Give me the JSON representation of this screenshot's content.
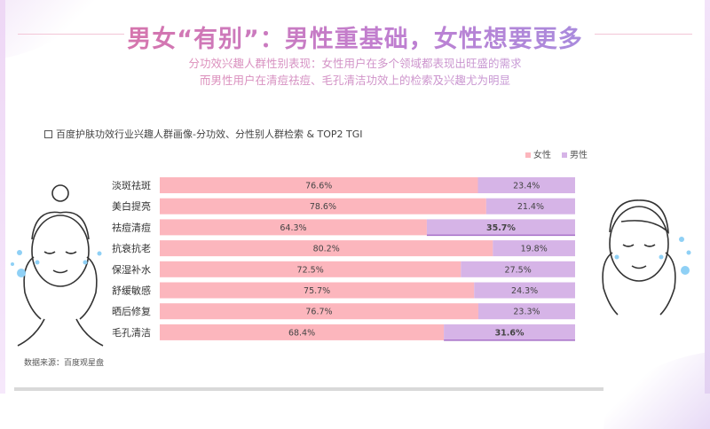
{
  "title": "男女“有别”：男性重基础，女性想要更多",
  "subtitle_lines": [
    "分功效兴趣人群性别表现：女性用户在多个领域都表现出旺盛的需求",
    "而男性用户在清痘祛痘、毛孔清洁功效上的检索及兴趣尤为明显"
  ],
  "source": "数据来源：百度观星盘",
  "colors": {
    "female": "#fcb6bd",
    "male": "#d6b4e7"
  },
  "chart_data": {
    "type": "bar",
    "orientation": "horizontal",
    "stacked": true,
    "normalized": true,
    "title": "百度护肤功效行业兴趣人群画像-分功效、分性别人群检索 & TOP2 TGI",
    "legend_position": "top-right",
    "categories": [
      "淡斑祛斑",
      "美白提亮",
      "祛痘清痘",
      "抗衰抗老",
      "保湿补水",
      "舒缓敏感",
      "晒后修复",
      "毛孔清洁"
    ],
    "series": [
      {
        "name": "女性",
        "values": [
          76.6,
          78.6,
          64.3,
          80.2,
          72.5,
          75.7,
          76.7,
          68.4
        ],
        "labels": [
          "76.6%",
          "78.6%",
          "64.3%",
          "80.2%",
          "72.5%",
          "75.7%",
          "76.7%",
          "68.4%"
        ]
      },
      {
        "name": "男性",
        "values": [
          23.4,
          21.4,
          35.7,
          19.8,
          27.5,
          24.3,
          23.3,
          31.6
        ],
        "labels": [
          "23.4%",
          "21.4%",
          "35.7%",
          "19.8%",
          "27.5%",
          "24.3%",
          "23.3%",
          "31.6%"
        ],
        "highlighted": [
          "祛痘清痘",
          "毛孔清洁"
        ]
      }
    ],
    "xlim": [
      0,
      100
    ],
    "grid": false
  }
}
